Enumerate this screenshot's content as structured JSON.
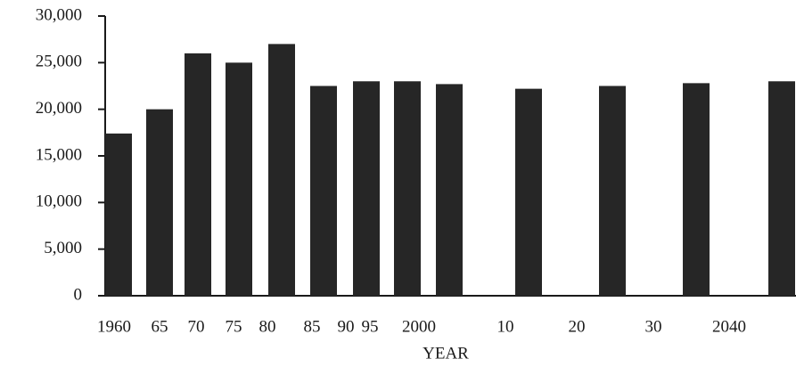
{
  "chart_data": {
    "type": "bar",
    "x_label": "YEAR",
    "categories": [
      "1960",
      "65",
      "70",
      "75",
      "80",
      "85",
      "90",
      "95",
      "2000",
      "10",
      "20",
      "30",
      "2040"
    ],
    "values": [
      17400,
      20000,
      26000,
      25000,
      27000,
      22500,
      23000,
      23000,
      22700,
      22200,
      22500,
      22800,
      23000
    ],
    "color": "#262626",
    "ylim": [
      0,
      30000
    ],
    "yticks": [
      0,
      {
        "value": 5000,
        "label": "5,000"
      },
      {
        "value": 10000,
        "label": "10,000"
      },
      {
        "value": 15000,
        "label": "15,000"
      },
      {
        "value": 20000,
        "label": "20,000"
      },
      {
        "value": 25000,
        "label": "25,000"
      },
      {
        "value": 30000,
        "label": "30,000"
      }
    ],
    "grid": false
  }
}
